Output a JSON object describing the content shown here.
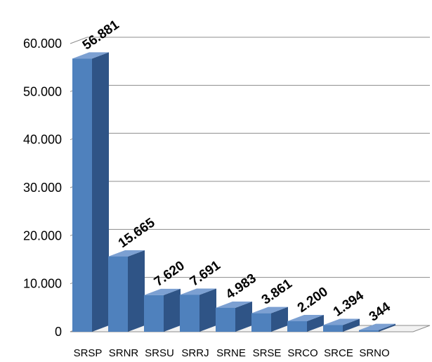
{
  "chart_data": {
    "type": "bar",
    "title": "",
    "xlabel": "",
    "ylabel": "",
    "categories": [
      "SRSP",
      "SRNR",
      "SRSU",
      "SRRJ",
      "SRNE",
      "SRSE",
      "SRCO",
      "SRCE",
      "SRNO"
    ],
    "values": [
      56881,
      15665,
      7620,
      7691,
      4983,
      3861,
      2200,
      1394,
      344
    ],
    "value_labels": [
      "56.881",
      "15.665",
      "7.620",
      "7.691",
      "4.983",
      "3.861",
      "2.200",
      "1.394",
      "344"
    ],
    "yticks": [
      0,
      10000,
      20000,
      30000,
      40000,
      50000,
      60000
    ],
    "ytick_labels": [
      "0",
      "10.000",
      "20.000",
      "30.000",
      "40.000",
      "50.000",
      "60.000"
    ],
    "ylim": [
      0,
      60000
    ],
    "grid": true,
    "legend": false,
    "style": "3d-clustered-column",
    "colors": {
      "bar_front": "#4F81BD",
      "bar_side": "#2F5486",
      "bar_top": "#7CA0D2",
      "grid": "#8C8C8C",
      "text": "#000000"
    }
  }
}
